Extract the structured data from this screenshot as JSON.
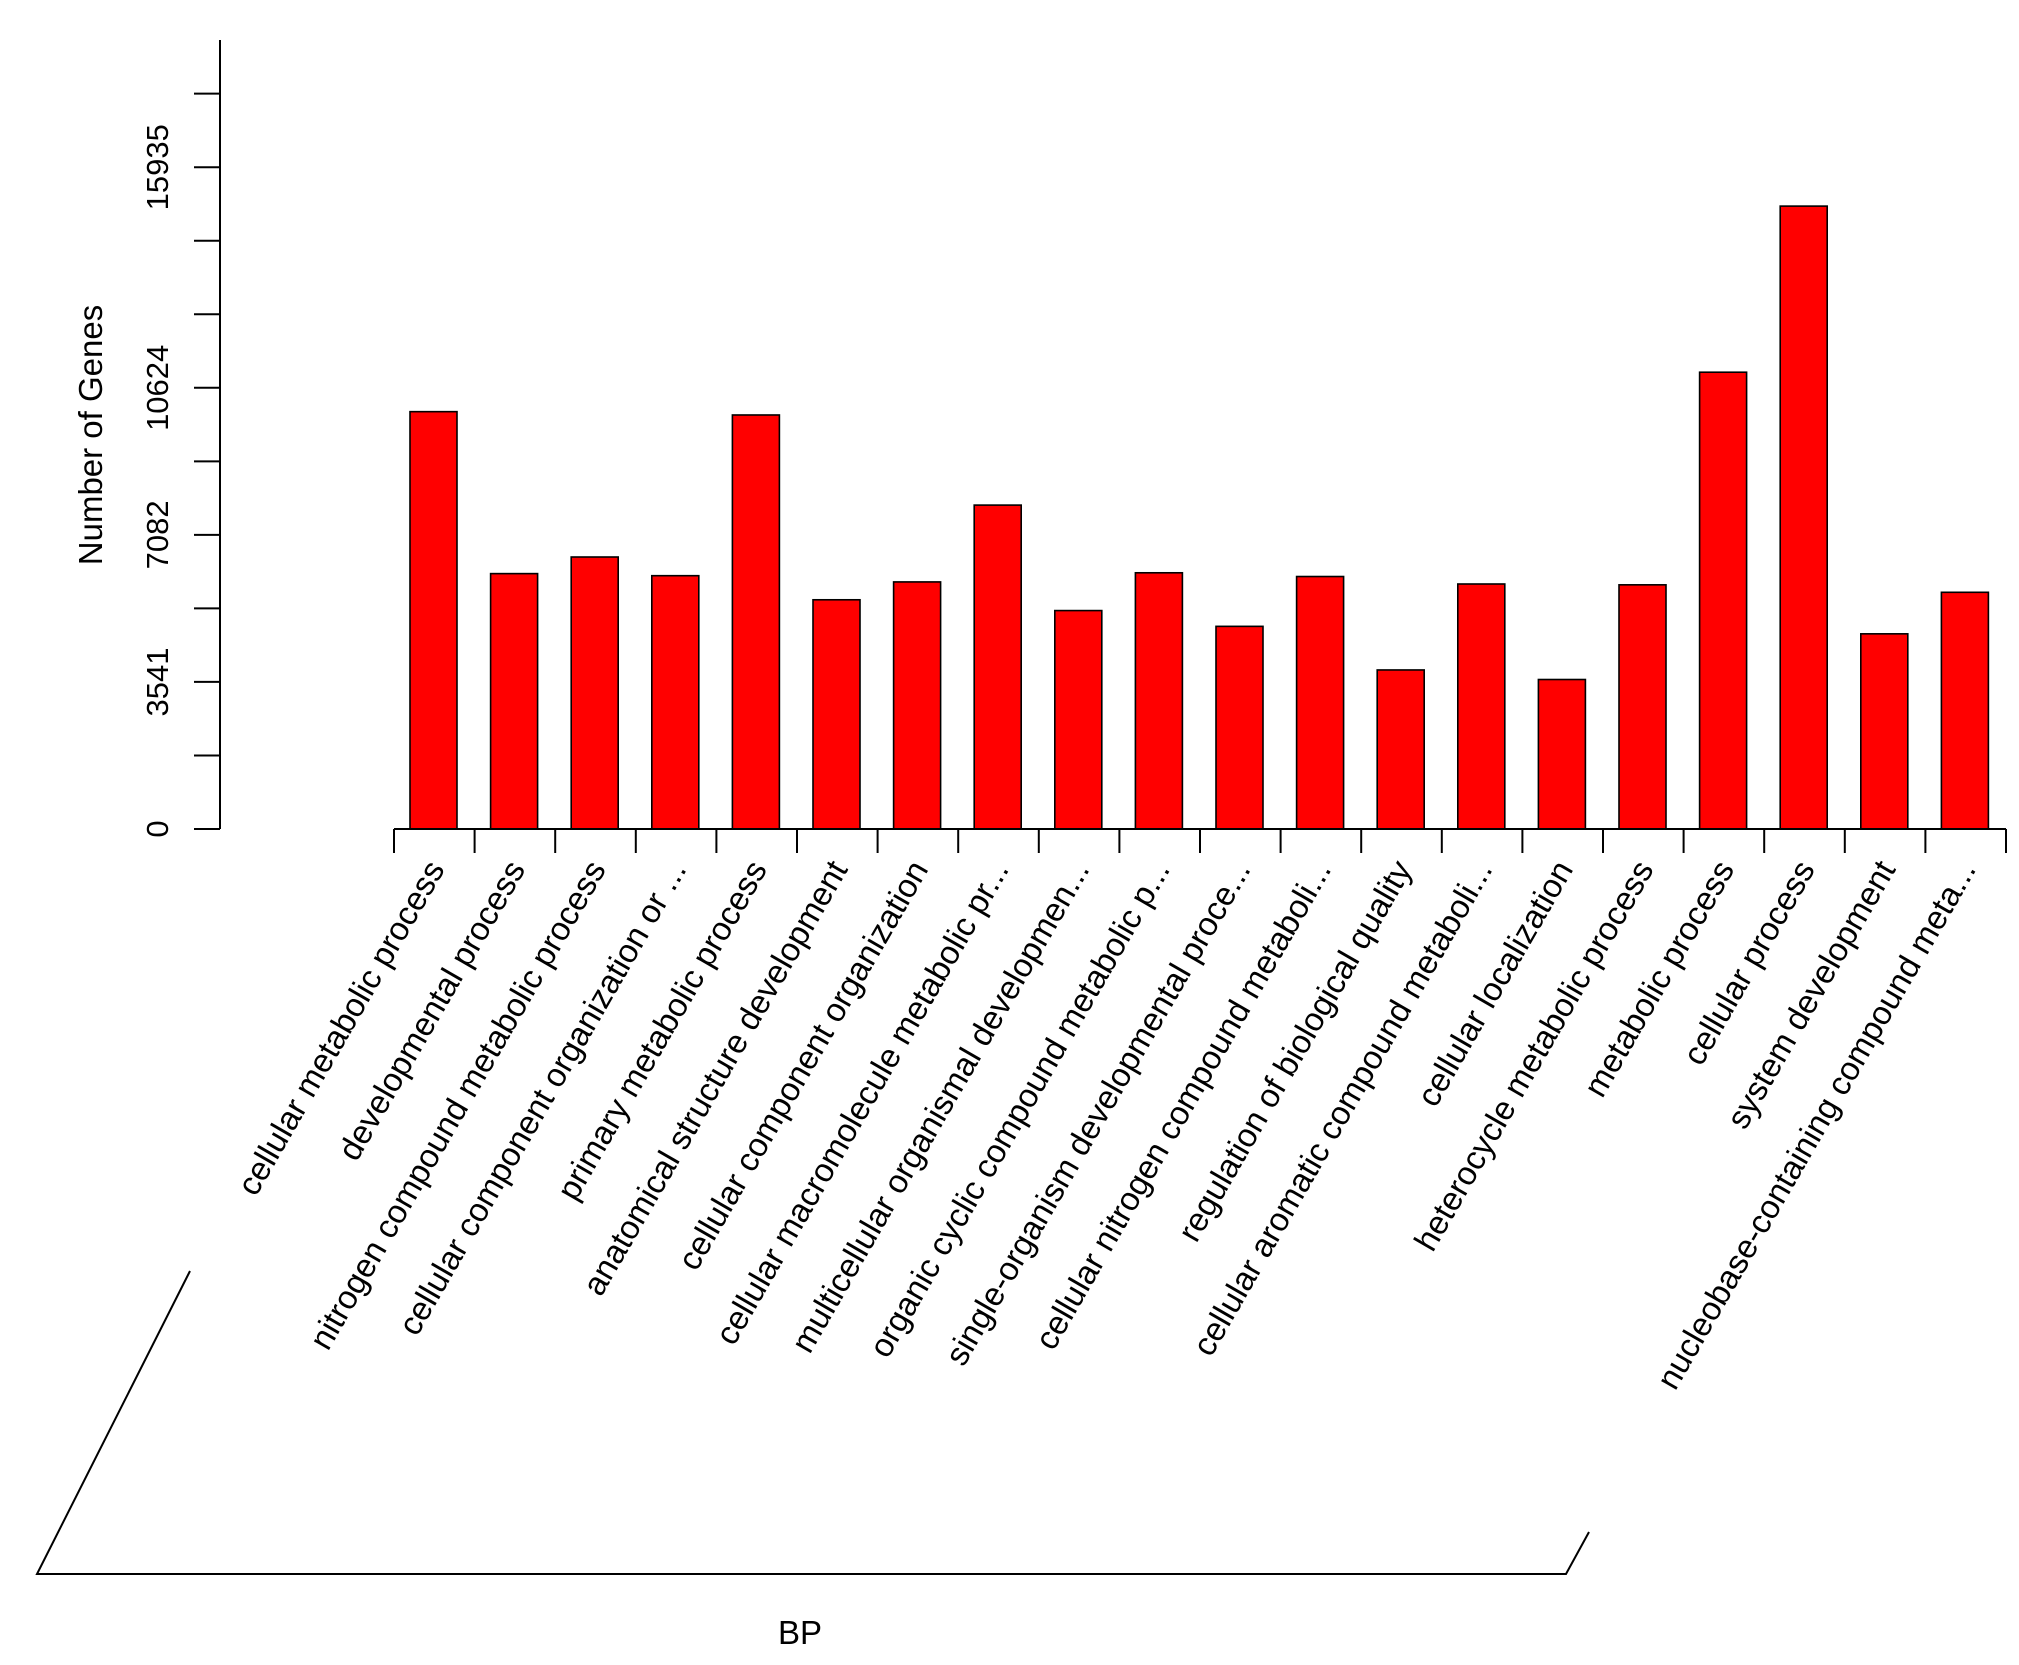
{
  "chart_data": {
    "type": "bar",
    "ylabel": "Number of Genes",
    "xlabel": "BP",
    "ylim": [
      0,
      19000
    ],
    "y_tick_labels": [
      "0",
      "3541",
      "7082",
      "10624",
      "15935"
    ],
    "bar_color": "#ff0000",
    "grid": false,
    "categories": [
      "cellular metabolic process",
      "developmental process",
      "nitrogen compound metabolic process",
      "cellular component organization or ...",
      "primary metabolic process",
      "anatomical structure development",
      "cellular component organization",
      "cellular macromolecule metabolic pr...",
      "multicellular organismal developmen...",
      "organic cyclic compound metabolic p...",
      "single-organism developmental proce...",
      "cellular nitrogen compound metaboli...",
      "regulation of biological quality",
      "cellular aromatic compound metaboli...",
      "cellular localization",
      "heterocycle metabolic process",
      "metabolic process",
      "cellular process",
      "system development",
      "nucleobase-containing compound meta..."
    ],
    "values": [
      10050,
      6150,
      6550,
      6100,
      9970,
      5520,
      5950,
      7800,
      5260,
      6170,
      4880,
      6080,
      3830,
      5900,
      3600,
      5880,
      11000,
      15000,
      4700,
      5700
    ]
  }
}
